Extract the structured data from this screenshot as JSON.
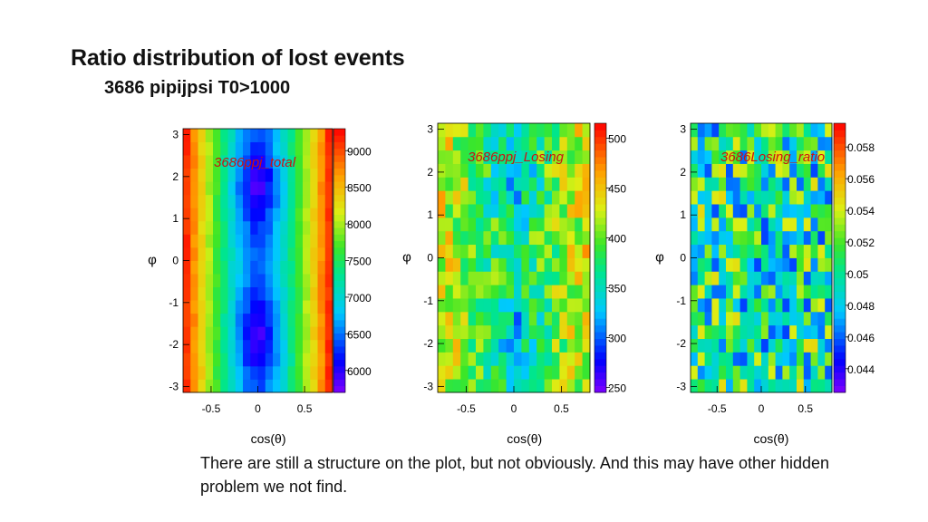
{
  "slide": {
    "title": "Ratio distribution of lost events",
    "subtitle": "3686 pipijpsi T0>1000",
    "caption": "There are still a structure on the plot, but not obviously. And this may have other hidden problem we not find."
  },
  "chart_data": [
    {
      "type": "heatmap",
      "title": "3686ppj_total",
      "xlabel": "cos(θ)",
      "ylabel": "φ",
      "xlim": [
        -0.8,
        0.8
      ],
      "ylim": [
        -3.14,
        3.14
      ],
      "xticks": [
        "-0.5",
        "0",
        "0.5"
      ],
      "xtick_values": [
        -0.5,
        0,
        0.5
      ],
      "yticks": [
        "3",
        "2",
        "1",
        "0",
        "-1",
        "-2",
        "-3"
      ],
      "ytick_values": [
        3,
        2,
        1,
        0,
        -1,
        -2,
        -3
      ],
      "zlim": [
        5700,
        9300
      ],
      "colorbar_ticks": [
        "9000",
        "8500",
        "8000",
        "7500",
        "7000",
        "6500",
        "6000"
      ],
      "colorbar_tick_values": [
        9000,
        8500,
        8000,
        7500,
        7000,
        6500,
        6000
      ],
      "nx": 20,
      "ny": 20,
      "pattern": "high at |cos(θ)| edges (~9000), low blobs near cos(θ)=0 at φ≈±1.8 (~6000)"
    },
    {
      "type": "heatmap",
      "title": "3686ppj_Losing",
      "xlabel": "cos(θ)",
      "ylabel": "φ",
      "xlim": [
        -0.8,
        0.8
      ],
      "ylim": [
        -3.14,
        3.14
      ],
      "xticks": [
        "-0.5",
        "0",
        "0.5"
      ],
      "xtick_values": [
        -0.5,
        0,
        0.5
      ],
      "yticks": [
        "3",
        "2",
        "1",
        "0",
        "-1",
        "-2",
        "-3"
      ],
      "ytick_values": [
        3,
        2,
        1,
        0,
        -1,
        -2,
        -3
      ],
      "zlim": [
        245,
        515
      ],
      "colorbar_ticks": [
        "500",
        "450",
        "400",
        "350",
        "300",
        "250"
      ],
      "colorbar_tick_values": [
        500,
        450,
        400,
        350,
        300,
        250
      ],
      "nx": 20,
      "ny": 20,
      "pattern": "noisy, ~400 at edges, ~320 in central blobs"
    },
    {
      "type": "heatmap",
      "title": "3686Losing_ratio",
      "xlabel": "cos(θ)",
      "ylabel": "φ",
      "xlim": [
        -0.8,
        0.8
      ],
      "ylim": [
        -3.14,
        3.14
      ],
      "xticks": [
        "-0.5",
        "0",
        "0.5"
      ],
      "xtick_values": [
        -0.5,
        0,
        0.5
      ],
      "yticks": [
        "3",
        "2",
        "1",
        "0",
        "-1",
        "-2",
        "-3"
      ],
      "ytick_values": [
        3,
        2,
        1,
        0,
        -1,
        -2,
        -3
      ],
      "zlim": [
        0.0425,
        0.0595
      ],
      "colorbar_ticks": [
        "0.058",
        "0.056",
        "0.054",
        "0.052",
        "0.05",
        "0.048",
        "0.046",
        "0.044"
      ],
      "colorbar_tick_values": [
        0.058,
        0.056,
        0.054,
        0.052,
        0.05,
        0.048,
        0.046,
        0.044
      ],
      "nx": 20,
      "ny": 20,
      "pattern": "mostly uniform ~0.050 with random fluctuations"
    }
  ]
}
